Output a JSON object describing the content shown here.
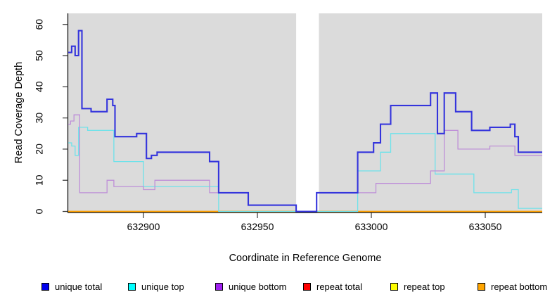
{
  "chart_data": {
    "type": "line",
    "subtype": "step-after-coverage-plot",
    "title": "",
    "xlabel": "Coordinate in Reference Genome",
    "ylabel": "Read Coverage Depth",
    "xlim": [
      632867,
      633075
    ],
    "ylim": [
      0,
      64
    ],
    "x_ticks": [
      632900,
      632950,
      633000,
      633050
    ],
    "y_ticks": [
      0,
      10,
      20,
      30,
      40,
      50,
      60
    ],
    "grid": "off",
    "panel_bg": "#DBDBDB",
    "axis_color": "#000000",
    "tick_color": "#454545",
    "gap_region": {
      "x_start": 632967,
      "x_end": 632977,
      "color": "#FFFFFF"
    },
    "legend": {
      "position": "bottom",
      "items": [
        {
          "label": "unique total",
          "swatch_color": "#0000EE"
        },
        {
          "label": "unique top",
          "swatch_color": "#00FFFF"
        },
        {
          "label": "unique bottom",
          "swatch_color": "#A020F0"
        },
        {
          "label": "repeat total",
          "swatch_color": "#FF0000"
        },
        {
          "label": "repeat top",
          "swatch_color": "#FFFF00"
        },
        {
          "label": "repeat bottom",
          "swatch_color": "#FFA500"
        }
      ]
    },
    "series": [
      {
        "name": "unique total",
        "line_color": "#3434DC",
        "line_width": 2.1,
        "z": 6,
        "steps": [
          [
            632867,
            51
          ],
          [
            632868.5,
            53
          ],
          [
            632870,
            50
          ],
          [
            632871.5,
            58
          ],
          [
            632873,
            33
          ],
          [
            632877,
            32
          ],
          [
            632884,
            36
          ],
          [
            632886.5,
            34
          ],
          [
            632887.5,
            24
          ],
          [
            632897,
            25
          ],
          [
            632901.3,
            17
          ],
          [
            632903.5,
            18
          ],
          [
            632906,
            19
          ],
          [
            632929,
            16
          ],
          [
            632933,
            6
          ],
          [
            632946,
            2
          ],
          [
            632967,
            0
          ],
          [
            632976,
            6
          ],
          [
            632994,
            19
          ],
          [
            633001,
            22
          ],
          [
            633004,
            28
          ],
          [
            633008.5,
            34
          ],
          [
            633026,
            38
          ],
          [
            633029,
            25
          ],
          [
            633032,
            38
          ],
          [
            633037,
            32
          ],
          [
            633044,
            26
          ],
          [
            633052,
            27
          ],
          [
            633061,
            28
          ],
          [
            633063,
            24
          ],
          [
            633064.5,
            19
          ]
        ]
      },
      {
        "name": "unique top",
        "line_color": "#6EE2EA",
        "line_width": 1.3,
        "z": 4,
        "steps": [
          [
            632867,
            22
          ],
          [
            632868.5,
            21
          ],
          [
            632870,
            18
          ],
          [
            632871.5,
            27
          ],
          [
            632875.5,
            26
          ],
          [
            632887,
            16
          ],
          [
            632900,
            8
          ],
          [
            632933,
            0
          ],
          [
            632994,
            13
          ],
          [
            633004,
            19
          ],
          [
            633008.5,
            25
          ],
          [
            633028,
            12
          ],
          [
            633045,
            6
          ],
          [
            633061.5,
            7
          ],
          [
            633064.5,
            1
          ]
        ]
      },
      {
        "name": "unique bottom",
        "line_color": "#BE8FD8",
        "line_width": 1.3,
        "z": 5,
        "steps": [
          [
            632867,
            28
          ],
          [
            632868,
            29
          ],
          [
            632869.5,
            31
          ],
          [
            632872,
            6
          ],
          [
            632884,
            10
          ],
          [
            632887,
            8
          ],
          [
            632900,
            7
          ],
          [
            632905,
            10
          ],
          [
            632929,
            6
          ],
          [
            632946,
            2
          ],
          [
            632967,
            0
          ],
          [
            632976,
            6
          ],
          [
            633002,
            9
          ],
          [
            633026,
            13
          ],
          [
            633032,
            26
          ],
          [
            633038,
            20
          ],
          [
            633052,
            21
          ],
          [
            633063,
            18
          ]
        ]
      },
      {
        "name": "repeat total",
        "line_color": "#FF0000",
        "line_width": 1.3,
        "z": 1,
        "steps": [
          [
            632867,
            0
          ]
        ]
      },
      {
        "name": "repeat top",
        "line_color": "#FFFF00",
        "line_width": 1.3,
        "z": 2,
        "steps": [
          [
            632867,
            0
          ]
        ]
      },
      {
        "name": "repeat bottom",
        "line_color": "#FFA000",
        "line_width": 1.7,
        "z": 3,
        "steps": [
          [
            632867,
            0
          ]
        ]
      }
    ]
  }
}
